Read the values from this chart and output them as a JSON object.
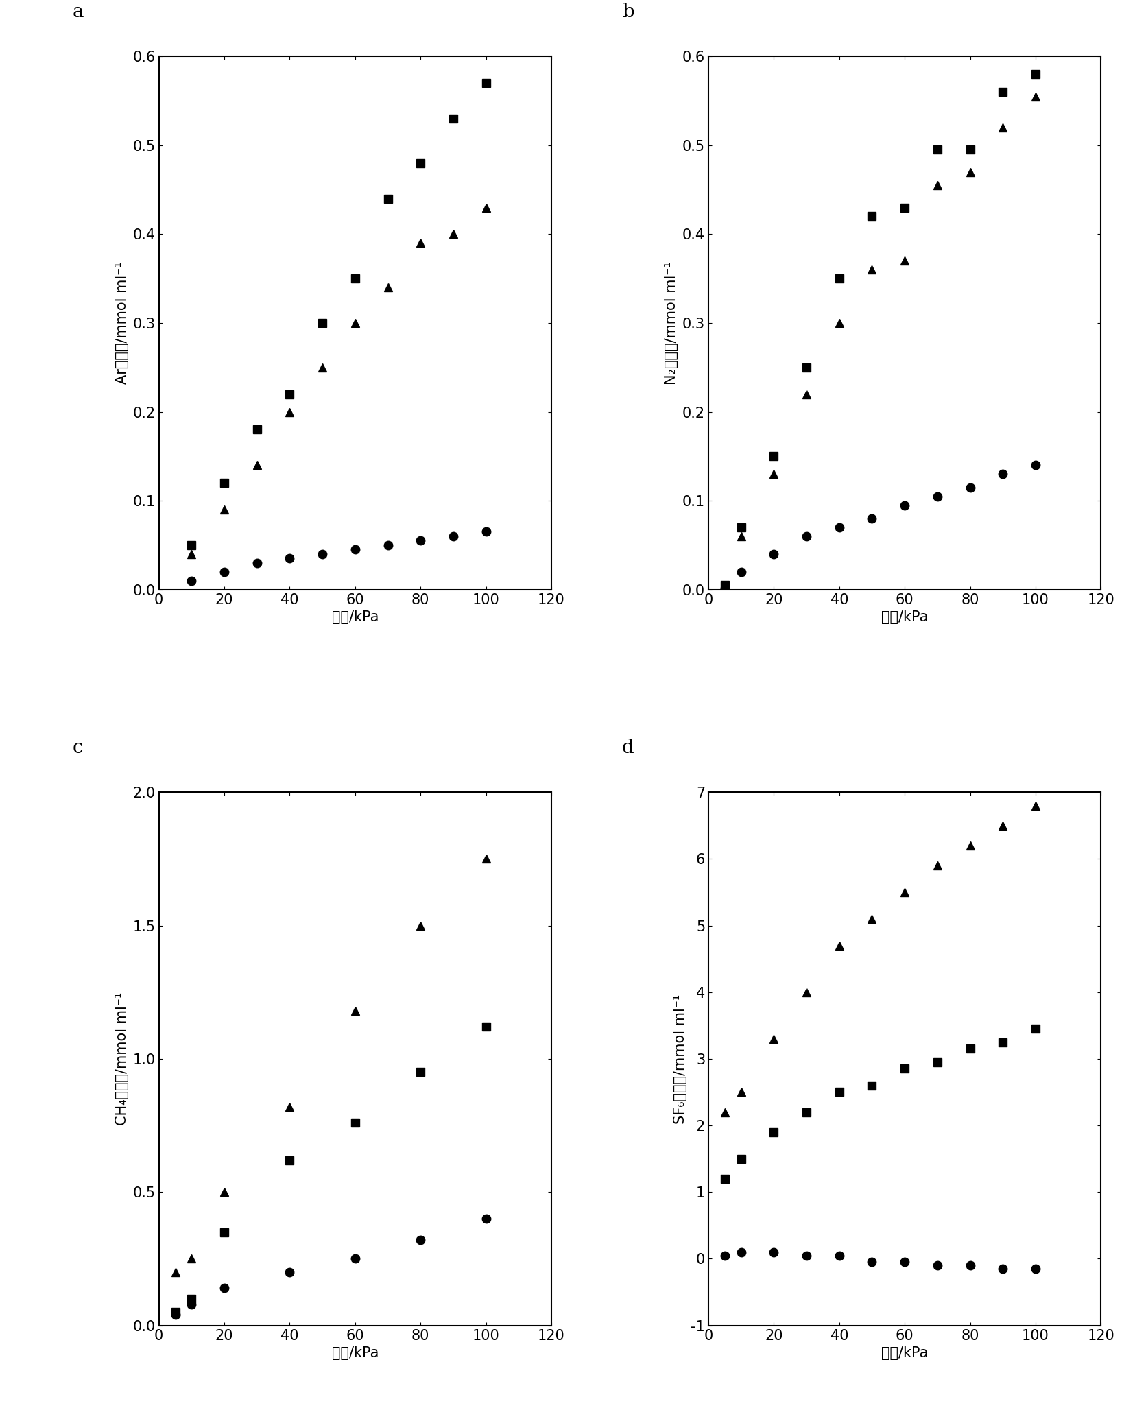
{
  "subplot_a": {
    "label": "a",
    "ylabel": "Ar吸附量/mmol ml⁻¹",
    "xlabel": "压力/kPa",
    "xlim": [
      0,
      120
    ],
    "ylim": [
      0,
      0.6
    ],
    "yticks": [
      0,
      0.1,
      0.2,
      0.3,
      0.4,
      0.5,
      0.6
    ],
    "xticks": [
      0,
      20,
      40,
      60,
      80,
      100,
      120
    ],
    "series": {
      "square": {
        "x": [
          10,
          20,
          30,
          40,
          50,
          60,
          70,
          80,
          90,
          100
        ],
        "y": [
          0.05,
          0.12,
          0.18,
          0.22,
          0.3,
          0.35,
          0.44,
          0.48,
          0.53,
          0.57
        ]
      },
      "triangle": {
        "x": [
          10,
          20,
          30,
          40,
          50,
          60,
          70,
          80,
          90,
          100
        ],
        "y": [
          0.04,
          0.09,
          0.14,
          0.2,
          0.25,
          0.3,
          0.34,
          0.39,
          0.4,
          0.43
        ]
      },
      "circle": {
        "x": [
          10,
          20,
          30,
          40,
          50,
          60,
          70,
          80,
          90,
          100
        ],
        "y": [
          0.01,
          0.02,
          0.03,
          0.035,
          0.04,
          0.045,
          0.05,
          0.055,
          0.06,
          0.065
        ]
      }
    }
  },
  "subplot_b": {
    "label": "b",
    "ylabel": "N₂吸附量/mmol ml⁻¹",
    "xlabel": "压力/kPa",
    "xlim": [
      0,
      120
    ],
    "ylim": [
      0,
      0.6
    ],
    "yticks": [
      0,
      0.1,
      0.2,
      0.3,
      0.4,
      0.5,
      0.6
    ],
    "xticks": [
      0,
      20,
      40,
      60,
      80,
      100,
      120
    ],
    "series": {
      "square": {
        "x": [
          5,
          10,
          20,
          30,
          40,
          50,
          60,
          70,
          80,
          90,
          100
        ],
        "y": [
          0.005,
          0.07,
          0.15,
          0.25,
          0.35,
          0.42,
          0.43,
          0.495,
          0.495,
          0.56,
          0.58
        ]
      },
      "triangle": {
        "x": [
          5,
          10,
          20,
          30,
          40,
          50,
          60,
          70,
          80,
          90,
          100
        ],
        "y": [
          0.003,
          0.06,
          0.13,
          0.22,
          0.3,
          0.36,
          0.37,
          0.455,
          0.47,
          0.52,
          0.555
        ]
      },
      "circle": {
        "x": [
          5,
          10,
          20,
          30,
          40,
          50,
          60,
          70,
          80,
          90,
          100
        ],
        "y": [
          0.001,
          0.02,
          0.04,
          0.06,
          0.07,
          0.08,
          0.095,
          0.105,
          0.115,
          0.13,
          0.14
        ]
      }
    }
  },
  "subplot_c": {
    "label": "c",
    "ylabel": "CH₄吸附量/mmol ml⁻¹",
    "xlabel": "压力/kPa",
    "xlim": [
      0,
      120
    ],
    "ylim": [
      0,
      2.0
    ],
    "yticks": [
      0,
      0.5,
      1.0,
      1.5,
      2.0
    ],
    "xticks": [
      0,
      20,
      40,
      60,
      80,
      100,
      120
    ],
    "series": {
      "square": {
        "x": [
          5,
          10,
          20,
          40,
          60,
          80,
          100
        ],
        "y": [
          0.05,
          0.1,
          0.35,
          0.62,
          0.76,
          0.95,
          1.12
        ]
      },
      "triangle": {
        "x": [
          5,
          10,
          20,
          40,
          60,
          80,
          100
        ],
        "y": [
          0.2,
          0.25,
          0.5,
          0.82,
          1.18,
          1.5,
          1.75
        ]
      },
      "circle": {
        "x": [
          5,
          10,
          20,
          40,
          60,
          80,
          100
        ],
        "y": [
          0.04,
          0.08,
          0.14,
          0.2,
          0.25,
          0.32,
          0.4
        ]
      }
    }
  },
  "subplot_d": {
    "label": "d",
    "ylabel": "SF₆吸附量/mmol ml⁻¹",
    "xlabel": "压力/kPa",
    "xlim": [
      0,
      120
    ],
    "ylim": [
      -1,
      7
    ],
    "yticks": [
      -1,
      0,
      1,
      2,
      3,
      4,
      5,
      6,
      7
    ],
    "xticks": [
      0,
      20,
      40,
      60,
      80,
      100,
      120
    ],
    "series": {
      "square": {
        "x": [
          5,
          10,
          20,
          30,
          40,
          50,
          60,
          70,
          80,
          90,
          100
        ],
        "y": [
          1.2,
          1.5,
          1.9,
          2.2,
          2.5,
          2.6,
          2.85,
          2.95,
          3.15,
          3.25,
          3.45
        ]
      },
      "triangle": {
        "x": [
          5,
          10,
          20,
          30,
          40,
          50,
          60,
          70,
          80,
          90,
          100
        ],
        "y": [
          2.2,
          2.5,
          3.3,
          4.0,
          4.7,
          5.1,
          5.5,
          5.9,
          6.2,
          6.5,
          6.8
        ]
      },
      "circle": {
        "x": [
          5,
          10,
          20,
          30,
          40,
          50,
          60,
          70,
          80,
          90,
          100
        ],
        "y": [
          0.05,
          0.1,
          0.1,
          0.05,
          0.05,
          -0.05,
          -0.05,
          -0.1,
          -0.1,
          -0.15,
          -0.15
        ]
      }
    }
  },
  "marker_size": 9,
  "marker_color": "black",
  "background_color": "white",
  "label_fontsize": 20,
  "tick_fontsize": 15,
  "axis_label_fontsize": 15
}
